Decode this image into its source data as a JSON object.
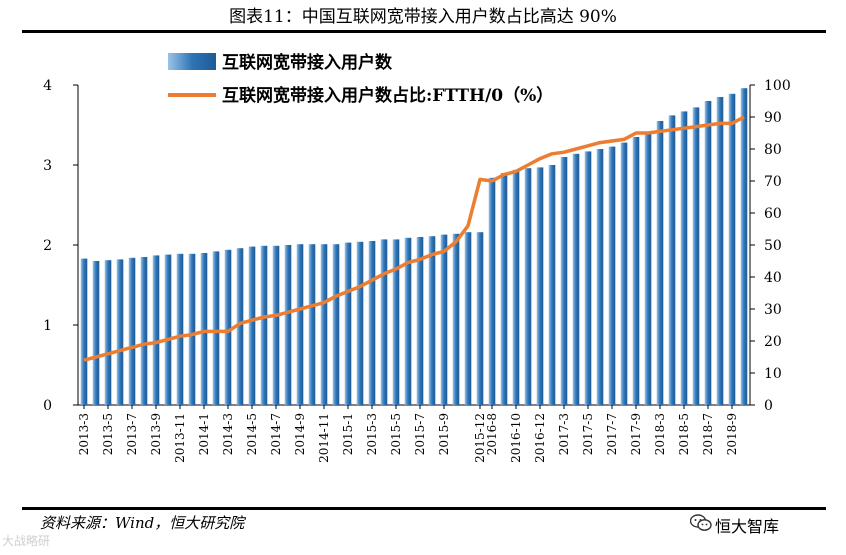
{
  "title": "图表11：中国互联网宽带接入用户数占比高达 90%",
  "source": "资料来源：Wind，恒大研究院",
  "watermark_right": "恒大智库",
  "watermark_left": "大战略研",
  "chart_data": {
    "type": "bar+line",
    "title": "图表11：中国互联网宽带接入用户数占比高达 90%",
    "legend": [
      {
        "name": "互联网宽带接入用户数",
        "kind": "bar",
        "color": "#2e75b6"
      },
      {
        "name": "互联网宽带接入用户数占比:FTTH/0（%）",
        "kind": "line",
        "color": "#ed7d31"
      }
    ],
    "y_left": {
      "min": 0,
      "max": 4,
      "ticks": [
        "0",
        "1",
        "2",
        "3",
        "4"
      ]
    },
    "y_right": {
      "min": 0,
      "max": 100,
      "ticks": [
        "0",
        "10",
        "20",
        "30",
        "40",
        "50",
        "60",
        "70",
        "80",
        "90",
        "100"
      ]
    },
    "categories": [
      "2013-3",
      "2013-4",
      "2013-5",
      "2013-6",
      "2013-7",
      "2013-8",
      "2013-9",
      "2013-10",
      "2013-11",
      "2013-12",
      "2014-1",
      "2014-2",
      "2014-3",
      "2014-4",
      "2014-5",
      "2014-6",
      "2014-7",
      "2014-8",
      "2014-9",
      "2014-10",
      "2014-11",
      "2014-12",
      "2015-1",
      "2015-2",
      "2015-3",
      "2015-4",
      "2015-5",
      "2015-6",
      "2015-7",
      "2015-8",
      "2015-9",
      "2015-10",
      "2015-11",
      "2015-12",
      "2016-8",
      "2016-9",
      "2016-10",
      "2016-11",
      "2016-12",
      "2017-1",
      "2017-3",
      "2017-4",
      "2017-5",
      "2017-6",
      "2017-7",
      "2017-8",
      "2017-9",
      "2017-10",
      "2018-3",
      "2018-4",
      "2018-5",
      "2018-6",
      "2018-7",
      "2018-8",
      "2018-9",
      "2018-10"
    ],
    "x_tick_labels": [
      "2013-3",
      "2013-5",
      "2013-7",
      "2013-9",
      "2013-11",
      "2014-1",
      "2014-3",
      "2014-5",
      "2014-7",
      "2014-9",
      "2014-11",
      "2015-1",
      "2015-3",
      "2015-5",
      "2015-7",
      "2015-9",
      "2015-12",
      "2016-8",
      "2016-10",
      "2016-12",
      "2017-3",
      "2017-5",
      "2017-7",
      "2017-9",
      "2018-3",
      "2018-5",
      "2018-7",
      "2018-9"
    ],
    "series": [
      {
        "name": "互联网宽带接入用户数",
        "axis": "left",
        "values": [
          1.83,
          1.8,
          1.81,
          1.82,
          1.84,
          1.85,
          1.87,
          1.88,
          1.89,
          1.89,
          1.9,
          1.92,
          1.94,
          1.96,
          1.98,
          1.99,
          1.99,
          2.0,
          2.01,
          2.01,
          2.01,
          2.01,
          2.03,
          2.04,
          2.05,
          2.07,
          2.07,
          2.09,
          2.1,
          2.11,
          2.13,
          2.14,
          2.16,
          2.16,
          2.84,
          2.9,
          2.94,
          2.96,
          2.97,
          3.0,
          3.1,
          3.14,
          3.17,
          3.2,
          3.23,
          3.28,
          3.35,
          3.39,
          3.55,
          3.62,
          3.67,
          3.72,
          3.8,
          3.85,
          3.89,
          3.96
        ]
      },
      {
        "name": "互联网宽带接入用户数占比:FTTH/0（%）",
        "axis": "right",
        "values": [
          14,
          15,
          16,
          17,
          18,
          19,
          19.5,
          20.5,
          21.5,
          22,
          23,
          23,
          23,
          25.5,
          26.5,
          27.5,
          28,
          29,
          30,
          31,
          32,
          34,
          35.5,
          37,
          39,
          41,
          42.5,
          44.5,
          45.5,
          47,
          48,
          51,
          56,
          70.5,
          70,
          72,
          73,
          75,
          77,
          78.5,
          79,
          80,
          81,
          82,
          82.5,
          83,
          85,
          85,
          85.5,
          86,
          86.5,
          87,
          87.5,
          88,
          88,
          90
        ]
      }
    ]
  }
}
